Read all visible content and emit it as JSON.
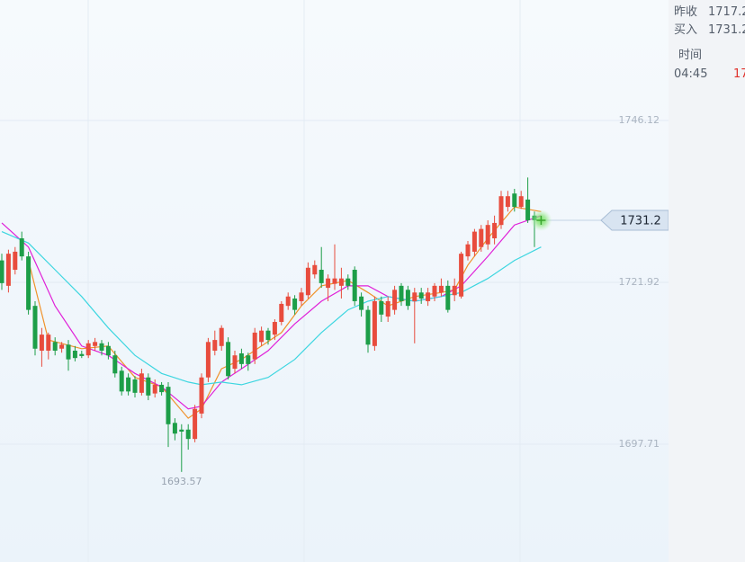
{
  "chart_data": {
    "type": "candlestick",
    "ylim": [
      1680.1,
      1764.14
    ],
    "yticks": [
      1746.12,
      1721.92,
      1697.71
    ],
    "grid": true,
    "up_color": "#e84c3d",
    "down_color": "#1d9e48",
    "open": [
      1725.2,
      1721.4,
      1723.8,
      1728.5,
      1725.8,
      1718.4,
      1711.7,
      1711.7,
      1713.0,
      1712.0,
      1712.6,
      1711.7,
      1711.2,
      1711.0,
      1712.4,
      1712.8,
      1712.4,
      1711.0,
      1708.7,
      1707.7,
      1707.4,
      1705.4,
      1707.7,
      1705.3,
      1706.6,
      1706.3,
      1700.9,
      1699.9,
      1699.9,
      1698.5,
      1702.3,
      1707.7,
      1711.7,
      1712.4,
      1713.0,
      1709.0,
      1711.3,
      1711.0,
      1710.4,
      1713.0,
      1714.7,
      1714.1,
      1716.0,
      1718.4,
      1719.5,
      1719.1,
      1720.0,
      1723.1,
      1723.8,
      1721.1,
      1721.7,
      1721.4,
      1722.5,
      1723.8,
      1719.8,
      1717.8,
      1712.4,
      1719.1,
      1716.8,
      1717.8,
      1721.4,
      1720.8,
      1719.1,
      1720.4,
      1719.1,
      1719.8,
      1720.4,
      1721.4,
      1720.0,
      1719.8,
      1725.8,
      1726.5,
      1727.2,
      1727.6,
      1728.5,
      1730.5,
      1733.2,
      1735.2,
      1733.2,
      1734.3,
      1731.9,
      1731.2
    ],
    "high": [
      1726.2,
      1726.8,
      1727.2,
      1729.5,
      1726.5,
      1719.1,
      1715.1,
      1714.4,
      1713.7,
      1713.0,
      1713.3,
      1712.4,
      1711.7,
      1713.3,
      1713.6,
      1713.3,
      1713.0,
      1711.7,
      1709.3,
      1708.3,
      1707.9,
      1709.0,
      1708.3,
      1707.4,
      1707.0,
      1707.0,
      1701.6,
      1700.7,
      1700.7,
      1703.6,
      1708.3,
      1713.6,
      1714.7,
      1715.5,
      1713.7,
      1711.7,
      1712.0,
      1711.4,
      1715.1,
      1715.3,
      1715.1,
      1716.4,
      1719.1,
      1720.4,
      1720.0,
      1721.1,
      1724.9,
      1725.2,
      1727.2,
      1723.1,
      1727.6,
      1724.1,
      1723.1,
      1724.3,
      1720.4,
      1718.4,
      1719.8,
      1719.8,
      1719.8,
      1721.4,
      1721.8,
      1721.4,
      1721.1,
      1721.1,
      1721.1,
      1721.8,
      1722.5,
      1722.2,
      1722.5,
      1726.5,
      1728.1,
      1729.9,
      1730.5,
      1731.2,
      1731.9,
      1735.6,
      1735.6,
      1735.9,
      1735.6,
      1737.6,
      1732.5,
      1731.9
    ],
    "low": [
      1720.8,
      1720.4,
      1723.1,
      1725.2,
      1717.1,
      1711.0,
      1709.3,
      1710.4,
      1711.0,
      1711.4,
      1708.7,
      1710.1,
      1710.6,
      1710.6,
      1711.7,
      1711.0,
      1710.4,
      1707.7,
      1705.0,
      1705.0,
      1704.7,
      1705.0,
      1704.3,
      1704.7,
      1705.0,
      1697.3,
      1698.3,
      1693.57,
      1696.9,
      1698.0,
      1701.6,
      1707.0,
      1711.0,
      1711.7,
      1707.4,
      1708.3,
      1709.0,
      1708.7,
      1709.7,
      1712.4,
      1712.6,
      1713.3,
      1715.5,
      1717.8,
      1717.1,
      1718.4,
      1719.5,
      1722.5,
      1721.1,
      1719.1,
      1720.8,
      1719.5,
      1720.8,
      1718.4,
      1716.8,
      1711.4,
      1711.7,
      1716.0,
      1716.0,
      1717.1,
      1718.4,
      1717.8,
      1712.8,
      1718.7,
      1718.4,
      1719.1,
      1719.8,
      1717.4,
      1719.1,
      1719.5,
      1725.2,
      1725.8,
      1726.5,
      1726.8,
      1727.6,
      1729.9,
      1732.5,
      1732.5,
      1732.9,
      1730.8,
      1727.2,
      1730.8
    ],
    "close": [
      1721.8,
      1726.2,
      1726.5,
      1725.8,
      1717.8,
      1712.0,
      1714.1,
      1714.1,
      1711.7,
      1712.6,
      1710.4,
      1710.6,
      1710.9,
      1712.8,
      1713.0,
      1711.7,
      1711.0,
      1708.3,
      1705.6,
      1705.6,
      1705.4,
      1708.3,
      1705.0,
      1706.6,
      1705.5,
      1700.7,
      1699.3,
      1699.6,
      1698.5,
      1703.0,
      1707.7,
      1713.0,
      1713.3,
      1715.1,
      1707.9,
      1711.0,
      1709.7,
      1709.7,
      1714.4,
      1714.7,
      1713.3,
      1716.0,
      1718.7,
      1719.8,
      1717.8,
      1720.4,
      1724.1,
      1724.5,
      1721.8,
      1722.5,
      1722.5,
      1722.5,
      1721.4,
      1719.1,
      1717.8,
      1712.6,
      1719.1,
      1717.1,
      1719.1,
      1720.8,
      1719.1,
      1718.4,
      1720.4,
      1719.5,
      1720.4,
      1721.4,
      1721.4,
      1717.8,
      1721.4,
      1726.2,
      1727.6,
      1729.5,
      1729.9,
      1730.5,
      1730.8,
      1734.8,
      1734.8,
      1733.2,
      1734.8,
      1731.2,
      1731.2,
      1731.2
    ],
    "lines": [
      {
        "color": "#f0922b",
        "x": [
          4,
          7,
          12,
          16,
          20,
          24,
          28,
          30,
          33,
          36,
          39,
          42,
          45,
          48,
          52,
          55,
          58,
          62,
          66,
          68,
          70,
          73,
          77,
          81
        ],
        "values": [
          1725.2,
          1713.3,
          1712.0,
          1712.4,
          1707.7,
          1706.3,
          1701.6,
          1703.0,
          1709.0,
          1710.4,
          1712.4,
          1714.4,
          1718.4,
          1721.4,
          1722.2,
          1720.4,
          1718.4,
          1719.8,
          1720.4,
          1720.8,
          1724.5,
          1728.5,
          1733.2,
          1732.5
        ]
      },
      {
        "color": "#e020d8",
        "x": [
          0,
          4,
          8,
          12,
          16,
          20,
          24,
          28,
          30,
          33,
          36,
          40,
          44,
          48,
          52,
          55,
          58,
          62,
          66,
          69,
          73,
          77,
          81
        ],
        "values": [
          1730.8,
          1727.2,
          1718.4,
          1712.4,
          1711.0,
          1708.3,
          1706.3,
          1703.0,
          1703.4,
          1707.0,
          1709.0,
          1711.7,
          1715.7,
          1719.1,
          1721.4,
          1721.4,
          1719.8,
          1719.1,
          1719.8,
          1721.4,
          1725.8,
          1730.5,
          1731.9
        ]
      },
      {
        "color": "#3dd6e0",
        "x": [
          0,
          4,
          8,
          12,
          16,
          20,
          24,
          28,
          30,
          33,
          36,
          40,
          44,
          48,
          52,
          55,
          58,
          62,
          66,
          69,
          73,
          77,
          81
        ],
        "values": [
          1729.5,
          1727.8,
          1723.8,
          1719.8,
          1715.1,
          1711.0,
          1708.3,
          1707.0,
          1706.6,
          1707.0,
          1706.6,
          1707.7,
          1710.4,
          1714.4,
          1717.8,
          1719.1,
          1719.8,
          1719.1,
          1719.8,
          1720.4,
          1722.5,
          1725.2,
          1727.2
        ]
      }
    ]
  },
  "quote_panel": {
    "rows": [
      {
        "label": "昨收",
        "value": "1717.2"
      },
      {
        "label": "买入",
        "value": "1731.2"
      }
    ],
    "table": {
      "header": "时间",
      "rows": [
        [
          "04:45",
          "17"
        ]
      ]
    }
  }
}
